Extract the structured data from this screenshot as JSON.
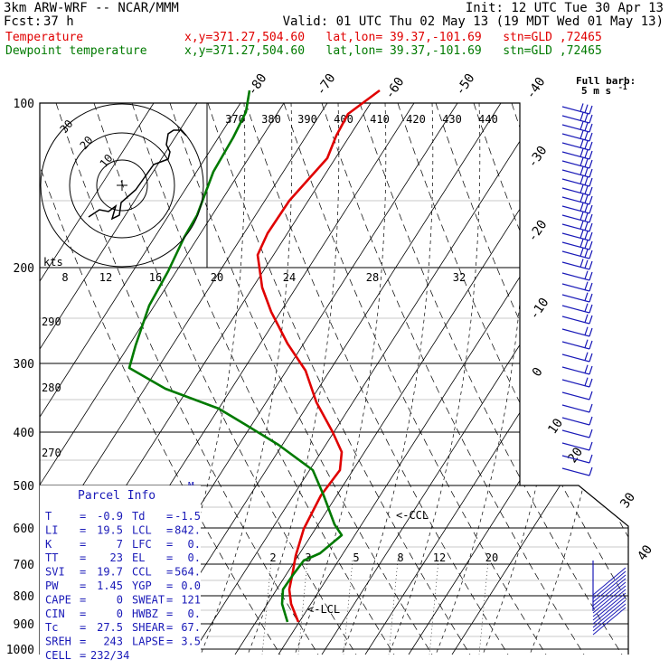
{
  "header": {
    "model": "3km ARW-WRF -- NCAR/MMM",
    "init": "Init: 12 UTC Tue 30 Apr 13",
    "fcst_label": "Fcst:",
    "fcst_value": "37 h",
    "valid": "Valid: 01 UTC Thu 02 May 13 (19 MDT Wed 01 May 13)",
    "series": [
      {
        "name": "Temperature",
        "info": "x,y=371.27,504.60   lat,lon= 39.37,-101.69   stn=GLD ,72465",
        "color": "#e00000"
      },
      {
        "name": "Dewpoint temperature",
        "info": "x,y=371.27,504.60   lat,lon= 39.37,-101.69   stn=GLD ,72465",
        "color": "#007a00"
      }
    ]
  },
  "chart_data": {
    "type": "line",
    "chart_kind": "skew-T log-p sounding",
    "y_axis": {
      "scale": "log",
      "unit": "hPa",
      "range": [
        1000,
        100
      ],
      "ticks": [
        "100",
        "200",
        "300",
        "400",
        "500",
        "600",
        "700",
        "800",
        "900",
        "1000"
      ]
    },
    "isotherm_labels": [
      "-80",
      "-70",
      "-60",
      "-50",
      "-40",
      "-30",
      "-20",
      "-10",
      "0",
      "10",
      "20",
      "30",
      "40"
    ],
    "theta_labels": [
      "370",
      "380",
      "390",
      "400",
      "410",
      "420",
      "430",
      "440"
    ],
    "dry_adiabat_labels": [
      "290",
      "280",
      "270"
    ],
    "mixing_ratio_labels": [
      "2",
      "3",
      "5",
      "8",
      "12",
      "20"
    ],
    "moist_adiabat_labels": [
      "8",
      "12",
      "16",
      "20",
      "24",
      "28",
      "32"
    ],
    "moist_adiabat_unit": "kts",
    "annotations": {
      "ccl": "<-CCL",
      "lcl": "<-LCL",
      "m_marker": "M"
    },
    "wind_legend": {
      "title": "Full barb:",
      "value": "5 m s",
      "superscript": "-1"
    },
    "hodograph": {
      "ring_labels": [
        "30",
        "20",
        "10"
      ]
    },
    "series": [
      {
        "name": "Temperature",
        "color": "#e00000",
        "points": [
          [
            420,
            100
          ],
          [
            385,
            126
          ],
          [
            372,
            150
          ],
          [
            362,
            175
          ],
          [
            320,
            222
          ],
          [
            296,
            258
          ],
          [
            285,
            282
          ],
          [
            290,
            318
          ],
          [
            300,
            345
          ],
          [
            318,
            380
          ],
          [
            338,
            410
          ],
          [
            350,
            445
          ],
          [
            368,
            478
          ],
          [
            378,
            500
          ],
          [
            376,
            520
          ],
          [
            355,
            548
          ],
          [
            336,
            585
          ],
          [
            327,
            615
          ],
          [
            324,
            632
          ],
          [
            320,
            652
          ],
          [
            322,
            668
          ],
          [
            330,
            688
          ]
        ]
      },
      {
        "name": "Dewpoint temperature",
        "color": "#007a00",
        "points": [
          [
            276,
            100
          ],
          [
            272,
            124
          ],
          [
            258,
            152
          ],
          [
            236,
            190
          ],
          [
            218,
            238
          ],
          [
            204,
            262
          ],
          [
            186,
            300
          ],
          [
            165,
            338
          ],
          [
            150,
            382
          ],
          [
            143,
            407
          ],
          [
            183,
            430
          ],
          [
            242,
            452
          ],
          [
            272,
            470
          ],
          [
            308,
            492
          ],
          [
            346,
            520
          ],
          [
            358,
            548
          ],
          [
            370,
            580
          ],
          [
            378,
            592
          ],
          [
            354,
            612
          ],
          [
            336,
            620
          ],
          [
            324,
            636
          ],
          [
            313,
            652
          ],
          [
            312,
            668
          ],
          [
            318,
            688
          ]
        ]
      }
    ]
  },
  "parcel_info": {
    "title": "Parcel Info",
    "rows": [
      [
        "T",
        "=",
        "-0.9",
        "Td",
        "=",
        "-1.5"
      ],
      [
        "LI",
        "=",
        "19.5",
        "LCL",
        "=",
        "842."
      ],
      [
        "K",
        "=",
        "7",
        "LFC",
        "=",
        "0."
      ],
      [
        "TT",
        "=",
        "23",
        "EL",
        "=",
        "0."
      ],
      [
        "SVI",
        "=",
        "19.7",
        "CCL",
        "=",
        "564."
      ],
      [
        "PW",
        "=",
        "1.45",
        "YGP",
        "=",
        "0.0"
      ],
      [
        "CAPE",
        "=",
        "0",
        "SWEAT",
        "=",
        "121"
      ],
      [
        "CIN",
        "=",
        "0",
        "HWBZ",
        "=",
        "0."
      ],
      [
        "Tc",
        "=",
        "27.5",
        "SHEAR",
        "=",
        "67."
      ],
      [
        "SREH",
        "=",
        "243",
        "LAPSE",
        "=",
        "3.5"
      ],
      [
        "CELL",
        "=",
        "232/34",
        "",
        "",
        ""
      ]
    ]
  },
  "colors": {
    "temperature": "#e00000",
    "dewpoint": "#007a00",
    "parcel_text": "#1a1ab8",
    "barbs": "#1a1ab8"
  }
}
